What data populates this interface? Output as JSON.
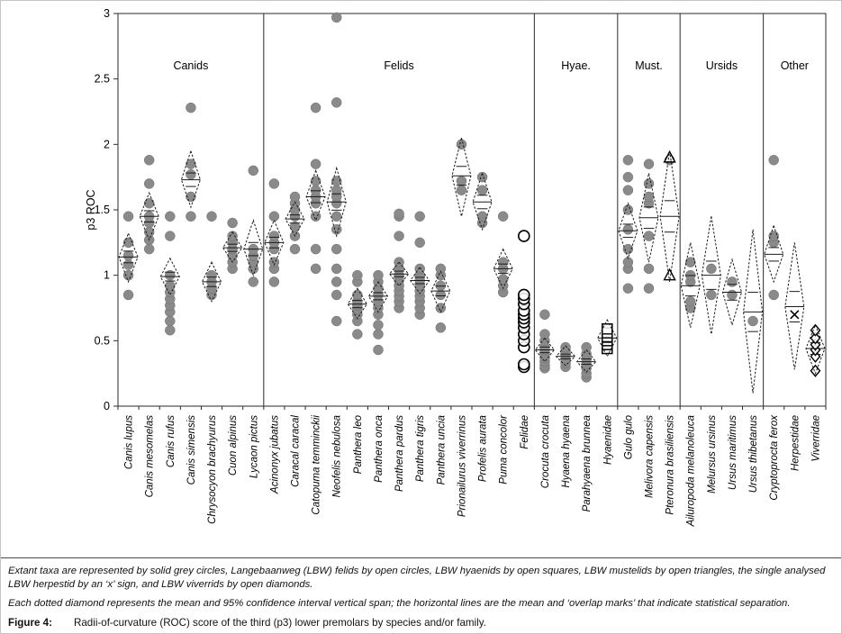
{
  "chart_data": {
    "type": "scatter",
    "title": "",
    "ylabel": "p3 ROC",
    "ylim": [
      0,
      3
    ],
    "yticks": [
      0,
      0.5,
      1,
      1.5,
      2,
      2.5,
      3
    ],
    "colors": {
      "solid_point": "#8a8a8a",
      "solid_point_edge": "#6f6f6f",
      "axis": "#2a2a2a",
      "diamond": "#1a1a1a"
    },
    "marker_legend": {
      "solid-circle": "extant taxa",
      "open-circle": "LBW felids",
      "open-square": "LBW hyaenids",
      "open-triangle": "LBW mustelids",
      "x": "LBW herpestid",
      "open-diamond": "LBW viverrids"
    },
    "groups": [
      {
        "label": "Canids",
        "species": [
          {
            "name": "Canis lupus",
            "markers": [
              {
                "type": "solid-circle",
                "values": [
                  0.85,
                  1.0,
                  1.08,
                  1.15,
                  1.25,
                  1.45
                ]
              }
            ],
            "diamond": {
              "low": 0.95,
              "mean": 1.14,
              "high": 1.32
            }
          },
          {
            "name": "Canis mesomelas",
            "markers": [
              {
                "type": "solid-circle",
                "values": [
                  1.2,
                  1.27,
                  1.33,
                  1.4,
                  1.45,
                  1.55,
                  1.7,
                  1.88
                ]
              }
            ],
            "diamond": {
              "low": 1.27,
              "mean": 1.45,
              "high": 1.63
            }
          },
          {
            "name": "Canis rufus",
            "markers": [
              {
                "type": "solid-circle",
                "values": [
                  0.58,
                  0.65,
                  0.72,
                  0.77,
                  0.82,
                  0.87,
                  0.92,
                  1.0,
                  1.3,
                  1.45
                ]
              }
            ],
            "diamond": {
              "low": 0.85,
              "mean": 0.99,
              "high": 1.13
            }
          },
          {
            "name": "Canis simensis",
            "markers": [
              {
                "type": "solid-circle",
                "values": [
                  1.45,
                  1.6,
                  1.77,
                  1.85,
                  2.28
                ]
              }
            ],
            "diamond": {
              "low": 1.52,
              "mean": 1.73,
              "high": 1.95
            }
          },
          {
            "name": "Chrysocyon brachyurus",
            "markers": [
              {
                "type": "solid-circle",
                "values": [
                  0.85,
                  0.9,
                  0.95,
                  1.0,
                  1.45
                ]
              }
            ],
            "diamond": {
              "low": 0.8,
              "mean": 0.95,
              "high": 1.1
            }
          },
          {
            "name": "Cuon alpinus",
            "markers": [
              {
                "type": "solid-circle",
                "values": [
                  1.05,
                  1.1,
                  1.15,
                  1.2,
                  1.25,
                  1.3,
                  1.4
                ]
              }
            ],
            "diamond": {
              "low": 1.1,
              "mean": 1.21,
              "high": 1.33
            }
          },
          {
            "name": "Lycaon pictus",
            "markers": [
              {
                "type": "solid-circle",
                "values": [
                  0.95,
                  1.05,
                  1.1,
                  1.15,
                  1.2,
                  1.8
                ]
              }
            ],
            "diamond": {
              "low": 1.0,
              "mean": 1.2,
              "high": 1.42
            }
          }
        ]
      },
      {
        "label": "Felids",
        "species": [
          {
            "name": "Acinonyx jubatus",
            "markers": [
              {
                "type": "solid-circle",
                "values": [
                  0.95,
                  1.05,
                  1.1,
                  1.2,
                  1.25,
                  1.3,
                  1.45,
                  1.7
                ]
              }
            ],
            "diamond": {
              "low": 1.08,
              "mean": 1.25,
              "high": 1.42
            }
          },
          {
            "name": "Caracal caracal",
            "markers": [
              {
                "type": "solid-circle",
                "values": [
                  1.2,
                  1.3,
                  1.37,
                  1.45,
                  1.5,
                  1.55,
                  1.6
                ]
              }
            ],
            "diamond": {
              "low": 1.3,
              "mean": 1.43,
              "high": 1.56
            }
          },
          {
            "name": "Catopuma temminckii",
            "markers": [
              {
                "type": "solid-circle",
                "values": [
                  1.05,
                  1.2,
                  1.45,
                  1.55,
                  1.6,
                  1.65,
                  1.72,
                  1.85,
                  2.28
                ]
              }
            ],
            "diamond": {
              "low": 1.42,
              "mean": 1.6,
              "high": 1.8
            }
          },
          {
            "name": "Neofelis nebulosa",
            "markers": [
              {
                "type": "solid-circle",
                "values": [
                  0.65,
                  0.85,
                  0.95,
                  1.05,
                  1.2,
                  1.35,
                  1.45,
                  1.55,
                  1.6,
                  1.65,
                  1.72,
                  2.32,
                  2.97
                ]
              }
            ],
            "diamond": {
              "low": 1.3,
              "mean": 1.56,
              "high": 1.82
            }
          },
          {
            "name": "Panthera leo",
            "markers": [
              {
                "type": "solid-circle",
                "values": [
                  0.55,
                  0.65,
                  0.7,
                  0.74,
                  0.77,
                  0.8,
                  0.85,
                  0.95,
                  1.0
                ]
              }
            ],
            "diamond": {
              "low": 0.67,
              "mean": 0.78,
              "high": 0.9
            }
          },
          {
            "name": "Panthera onca",
            "markers": [
              {
                "type": "solid-circle",
                "values": [
                  0.43,
                  0.55,
                  0.62,
                  0.7,
                  0.75,
                  0.8,
                  0.85,
                  0.9,
                  0.95,
                  1.0
                ]
              }
            ],
            "diamond": {
              "low": 0.72,
              "mean": 0.84,
              "high": 0.95
            }
          },
          {
            "name": "Panthera pardus",
            "markers": [
              {
                "type": "solid-circle",
                "values": [
                  0.75,
                  0.8,
                  0.84,
                  0.88,
                  0.92,
                  0.96,
                  1.0,
                  1.05,
                  1.1,
                  1.3,
                  1.45,
                  1.47
                ]
              }
            ],
            "diamond": {
              "low": 0.92,
              "mean": 1.01,
              "high": 1.1
            }
          },
          {
            "name": "Panthera tigris",
            "markers": [
              {
                "type": "solid-circle",
                "values": [
                  0.7,
                  0.75,
                  0.8,
                  0.84,
                  0.88,
                  0.92,
                  0.96,
                  1.0,
                  1.05,
                  1.25,
                  1.45
                ]
              }
            ],
            "diamond": {
              "low": 0.86,
              "mean": 0.96,
              "high": 1.06
            }
          },
          {
            "name": "Panthera uncia",
            "markers": [
              {
                "type": "solid-circle",
                "values": [
                  0.6,
                  0.75,
                  0.85,
                  0.92,
                  1.0,
                  1.05
                ]
              }
            ],
            "diamond": {
              "low": 0.72,
              "mean": 0.88,
              "high": 1.03
            }
          },
          {
            "name": "Prionailurus viverrinus",
            "markers": [
              {
                "type": "solid-circle",
                "values": [
                  1.65,
                  1.72,
                  2.0
                ]
              }
            ],
            "diamond": {
              "low": 1.45,
              "mean": 1.76,
              "high": 2.05
            }
          },
          {
            "name": "Profelis aurata",
            "markers": [
              {
                "type": "solid-circle",
                "values": [
                  1.4,
                  1.45,
                  1.65,
                  1.75
                ]
              }
            ],
            "diamond": {
              "low": 1.35,
              "mean": 1.56,
              "high": 1.78
            }
          },
          {
            "name": "Puma concolor",
            "markers": [
              {
                "type": "solid-circle",
                "values": [
                  0.87,
                  0.92,
                  0.97,
                  1.05,
                  1.1,
                  1.45
                ]
              }
            ],
            "diamond": {
              "low": 0.9,
              "mean": 1.05,
              "high": 1.2
            }
          },
          {
            "name": "Felidae",
            "markers": [
              {
                "type": "open-circle",
                "values": [
                  0.3,
                  0.32,
                  0.45,
                  0.5,
                  0.55,
                  0.6,
                  0.64,
                  0.67,
                  0.7,
                  0.73,
                  0.78,
                  0.82,
                  0.85,
                  1.3
                ]
              }
            ],
            "diamond": null
          }
        ]
      },
      {
        "label": "Hyae.",
        "species": [
          {
            "name": "Crocuta crocuta",
            "markers": [
              {
                "type": "solid-circle",
                "values": [
                  0.29,
                  0.31,
                  0.34,
                  0.37,
                  0.4,
                  0.43,
                  0.45,
                  0.5,
                  0.55,
                  0.7
                ]
              }
            ],
            "diamond": {
              "low": 0.34,
              "mean": 0.43,
              "high": 0.52
            }
          },
          {
            "name": "Hyaena hyaena",
            "markers": [
              {
                "type": "solid-circle",
                "values": [
                  0.3,
                  0.33,
                  0.36,
                  0.39,
                  0.42,
                  0.45
                ]
              }
            ],
            "diamond": {
              "low": 0.31,
              "mean": 0.38,
              "high": 0.46
            }
          },
          {
            "name": "Parahyaena brunnea",
            "markers": [
              {
                "type": "solid-circle",
                "values": [
                  0.22,
                  0.25,
                  0.29,
                  0.32,
                  0.36,
                  0.4,
                  0.45
                ]
              }
            ],
            "diamond": {
              "low": 0.26,
              "mean": 0.34,
              "high": 0.43
            }
          },
          {
            "name": "Hyaenidae",
            "markers": [
              {
                "type": "open-square",
                "values": [
                  0.44,
                  0.47,
                  0.5,
                  0.53,
                  0.56,
                  0.59
                ]
              }
            ],
            "diamond": {
              "low": 0.38,
              "mean": 0.52,
              "high": 0.66
            }
          }
        ]
      },
      {
        "label": "Must.",
        "species": [
          {
            "name": "Gulo gulo",
            "markers": [
              {
                "type": "solid-circle",
                "values": [
                  0.9,
                  1.05,
                  1.1,
                  1.2,
                  1.35,
                  1.5,
                  1.65,
                  1.75,
                  1.88
                ]
              }
            ],
            "diamond": {
              "low": 1.13,
              "mean": 1.34,
              "high": 1.55
            }
          },
          {
            "name": "Melivora capensis",
            "markers": [
              {
                "type": "solid-circle",
                "values": [
                  0.9,
                  1.05,
                  1.3,
                  1.55,
                  1.6,
                  1.7,
                  1.85
                ]
              }
            ],
            "diamond": {
              "low": 1.1,
              "mean": 1.44,
              "high": 1.78
            }
          },
          {
            "name": "Pteronura brasiliensis",
            "markers": [
              {
                "type": "solid-circle",
                "values": [
                  1.88
                ]
              },
              {
                "type": "open-triangle",
                "values": [
                  1.9,
                  1.0
                ]
              }
            ],
            "diamond": {
              "low": 0.95,
              "mean": 1.45,
              "high": 1.95
            }
          }
        ]
      },
      {
        "label": "Ursids",
        "species": [
          {
            "name": "Ailuropoda melanoleuca",
            "markers": [
              {
                "type": "solid-circle",
                "values": [
                  0.75,
                  0.8,
                  0.95,
                  1.0,
                  1.1
                ]
              }
            ],
            "diamond": {
              "low": 0.6,
              "mean": 0.92,
              "high": 1.25
            }
          },
          {
            "name": "Melursus ursinus",
            "markers": [
              {
                "type": "solid-circle",
                "values": [
                  0.85,
                  1.05
                ]
              }
            ],
            "diamond": {
              "low": 0.55,
              "mean": 1.0,
              "high": 1.45
            }
          },
          {
            "name": "Ursus maritimus",
            "markers": [
              {
                "type": "solid-circle",
                "values": [
                  0.85,
                  0.95
                ]
              }
            ],
            "diamond": {
              "low": 0.62,
              "mean": 0.87,
              "high": 1.12
            }
          },
          {
            "name": "Ursus thibetanus",
            "markers": [
              {
                "type": "solid-circle",
                "values": [
                  0.65
                ]
              }
            ],
            "diamond": {
              "low": 0.1,
              "mean": 0.72,
              "high": 1.35
            }
          }
        ]
      },
      {
        "label": "Other",
        "species": [
          {
            "name": "Cryptoprocta ferox",
            "markers": [
              {
                "type": "solid-circle",
                "values": [
                  0.85,
                  1.25,
                  1.3,
                  1.88
                ]
              }
            ],
            "diamond": {
              "low": 0.95,
              "mean": 1.16,
              "high": 1.38
            }
          },
          {
            "name": "Herpestidae",
            "markers": [
              {
                "type": "x",
                "values": [
                  0.7
                ]
              }
            ],
            "diamond": {
              "low": 0.28,
              "mean": 0.76,
              "high": 1.25
            }
          },
          {
            "name": "Viverridae",
            "markers": [
              {
                "type": "open-diamond",
                "values": [
                  0.27,
                  0.38,
                  0.43,
                  0.47,
                  0.52,
                  0.58
                ]
              }
            ],
            "diamond": {
              "low": 0.25,
              "mean": 0.44,
              "high": 0.62
            }
          }
        ]
      }
    ]
  },
  "caption": {
    "line1": "Extant taxa are represented by solid grey circles, Langebaanweg (LBW) felids by open circles, LBW hyaenids by open squares, LBW mustelids by open triangles, the single analysed LBW herpestid by an ‘x’ sign, and LBW viverrids by open diamonds.",
    "line2": "Each dotted diamond represents the mean and 95% confidence interval vertical span; the horizontal lines are the mean and ‘overlap marks’ that indicate statistical separation.",
    "figure_label": "Figure 4:",
    "figure_text": "Radii-of-curvature (ROC) score of the third (p3) lower premolars by species and/or family."
  }
}
